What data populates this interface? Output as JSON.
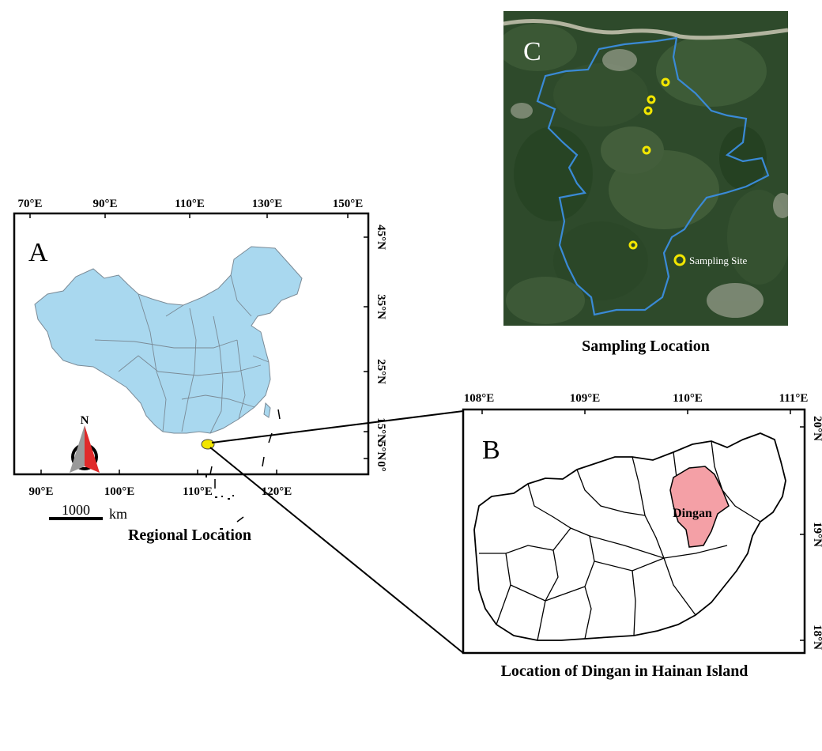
{
  "panel_a": {
    "letter": "A",
    "top_ticks": [
      "70°E",
      "90°E",
      "110°E",
      "130°E",
      "150°E"
    ],
    "bottom_ticks": [
      "90°E",
      "100°E",
      "110°E",
      "120°E"
    ],
    "right_ticks": [
      "45°N",
      "35°N",
      "25°N",
      "15°N",
      "5°N",
      "0°"
    ],
    "compass_label": "N",
    "scale_value": "1000",
    "scale_unit": "km",
    "caption": "Regional Location",
    "land_color": "#a9d8ef",
    "highlight_color": "#f2e600"
  },
  "panel_b": {
    "letter": "B",
    "top_ticks": [
      "108°E",
      "109°E",
      "110°E",
      "111°E"
    ],
    "right_ticks": [
      "20°N",
      "19°N",
      "18°N"
    ],
    "county_label": "Dingan",
    "caption": "Location of Dingan in Hainan Island",
    "county_color": "#f4a0a6"
  },
  "panel_c": {
    "letter": "C",
    "legend_label": "Sampling Site",
    "caption": "Sampling Location",
    "boundary_color": "#3a8ad6",
    "marker_color": "#f2e600"
  }
}
